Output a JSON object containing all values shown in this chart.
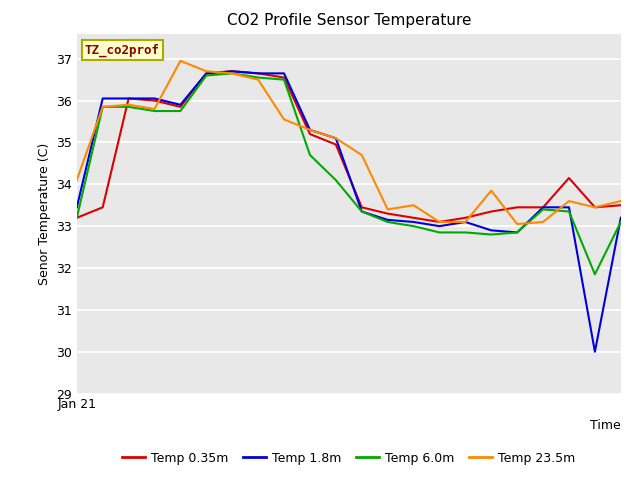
{
  "title": "CO2 Profile Sensor Temperature",
  "ylabel": "Senor Temperature (C)",
  "xlabel": "Time",
  "xlim": [
    0,
    21
  ],
  "ylim": [
    29.0,
    37.6
  ],
  "yticks": [
    29.0,
    30.0,
    31.0,
    32.0,
    33.0,
    34.0,
    35.0,
    36.0,
    37.0
  ],
  "xticklabels_pos": [
    0
  ],
  "xticklabels": [
    "Jan 21"
  ],
  "background_color": "#e8e8e8",
  "label_box_text": "TZ_co2prof",
  "series": {
    "Temp 0.35m": {
      "color": "#dd0000",
      "x": [
        0,
        1,
        2,
        3,
        4,
        5,
        6,
        7,
        8,
        9,
        10,
        11,
        12,
        13,
        14,
        15,
        16,
        17,
        18,
        19,
        20,
        21
      ],
      "y": [
        33.2,
        33.45,
        36.05,
        36.0,
        35.85,
        36.65,
        36.7,
        36.65,
        36.55,
        35.2,
        34.95,
        33.45,
        33.3,
        33.2,
        33.1,
        33.2,
        33.35,
        33.45,
        33.45,
        34.15,
        33.45,
        33.5
      ]
    },
    "Temp 1.8m": {
      "color": "#0000dd",
      "x": [
        0,
        1,
        2,
        3,
        4,
        5,
        6,
        7,
        8,
        9,
        10,
        11,
        12,
        13,
        14,
        15,
        16,
        17,
        18,
        19,
        20,
        21
      ],
      "y": [
        33.45,
        36.05,
        36.05,
        36.05,
        35.9,
        36.65,
        36.7,
        36.65,
        36.65,
        35.3,
        35.1,
        33.35,
        33.15,
        33.1,
        33.0,
        33.1,
        32.9,
        32.85,
        33.45,
        33.45,
        30.0,
        33.2
      ]
    },
    "Temp 6.0m": {
      "color": "#00aa00",
      "x": [
        0,
        1,
        2,
        3,
        4,
        5,
        6,
        7,
        8,
        9,
        10,
        11,
        12,
        13,
        14,
        15,
        16,
        17,
        18,
        19,
        20,
        21
      ],
      "y": [
        33.2,
        35.85,
        35.85,
        35.75,
        35.75,
        36.6,
        36.65,
        36.55,
        36.5,
        34.7,
        34.1,
        33.35,
        33.1,
        33.0,
        32.85,
        32.85,
        32.8,
        32.85,
        33.4,
        33.35,
        31.85,
        33.1
      ]
    },
    "Temp 23.5m": {
      "color": "#ff8800",
      "x": [
        0,
        1,
        2,
        3,
        4,
        5,
        6,
        7,
        8,
        9,
        10,
        11,
        12,
        13,
        14,
        15,
        16,
        17,
        18,
        19,
        20,
        21
      ],
      "y": [
        34.1,
        35.85,
        35.9,
        35.8,
        36.95,
        36.7,
        36.65,
        36.5,
        35.55,
        35.3,
        35.1,
        34.7,
        33.4,
        33.5,
        33.1,
        33.1,
        33.85,
        33.05,
        33.1,
        33.6,
        33.45,
        33.6
      ]
    }
  },
  "legend": {
    "entries": [
      "Temp 0.35m",
      "Temp 1.8m",
      "Temp 6.0m",
      "Temp 23.5m"
    ],
    "colors": [
      "#dd0000",
      "#0000dd",
      "#00aa00",
      "#ff8800"
    ]
  }
}
